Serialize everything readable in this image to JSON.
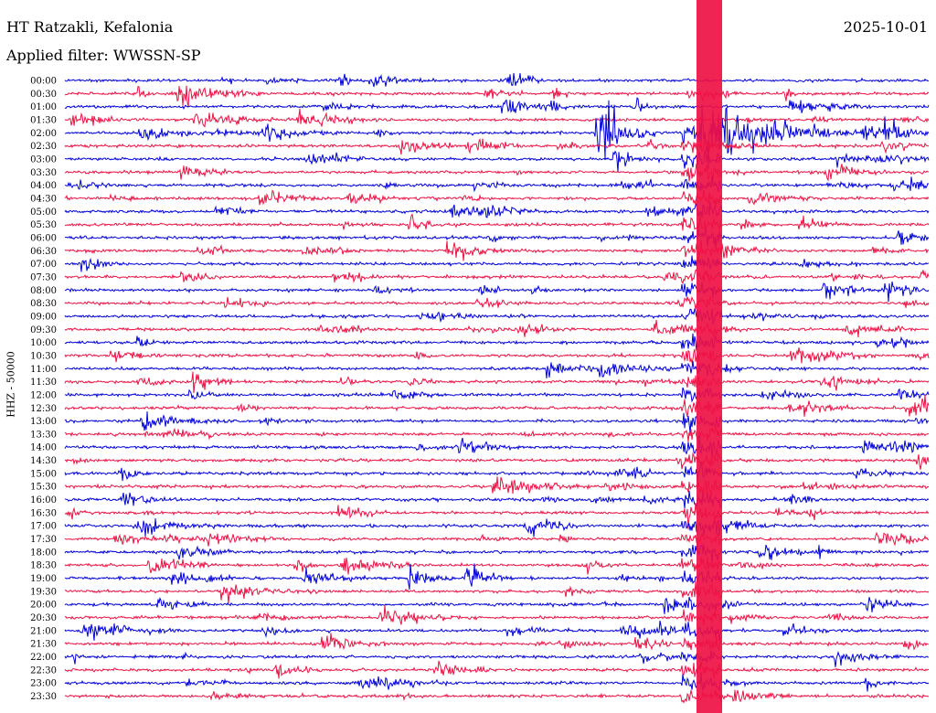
{
  "header": {
    "station": "HT Ratzakli, Kefalonia",
    "filter": "Applied filter: WWSSN-SP",
    "date": "2025-10-01"
  },
  "axis": {
    "channel_label": "HHZ - 50000"
  },
  "colors": {
    "trace_a": "#0000dd",
    "trace_b": "#ee1144",
    "background": "#ffffff",
    "text": "#000000"
  },
  "chart_data": {
    "type": "line",
    "title": "HT Ratzakli, Kefalonia",
    "subtitle": "Applied filter: WWSSN-SP",
    "date": "2025-10-01",
    "channel": "HHZ - 50000",
    "trace_interval_minutes": 30,
    "alternating_colors": [
      "#0000dd",
      "#ee1144"
    ],
    "rows": [
      "00:00",
      "00:30",
      "01:00",
      "01:30",
      "02:00",
      "02:30",
      "03:00",
      "03:30",
      "04:00",
      "04:30",
      "05:00",
      "05:30",
      "06:00",
      "06:30",
      "07:00",
      "07:30",
      "08:00",
      "08:30",
      "09:00",
      "09:30",
      "10:00",
      "10:30",
      "11:00",
      "11:30",
      "12:00",
      "12:30",
      "13:00",
      "13:30",
      "14:00",
      "14:30",
      "15:00",
      "15:30",
      "16:00",
      "16:30",
      "17:00",
      "17:30",
      "18:00",
      "18:30",
      "19:00",
      "19:30",
      "20:00",
      "20:30",
      "21:00",
      "21:30",
      "22:00",
      "22:30",
      "23:00",
      "23:30"
    ],
    "notable_events": [
      {
        "row": "00:30",
        "minute": 4,
        "amplitude": "large"
      },
      {
        "row": "02:00",
        "minute": 18.5,
        "amplitude": "very-large",
        "note": "long coda persisting to ~23:30"
      },
      {
        "row": "02:00",
        "minute": 28.5,
        "amplitude": "large"
      },
      {
        "row": "19:00",
        "minute": 14,
        "amplitude": "large"
      },
      {
        "row": "19:00",
        "minute": 12,
        "amplitude": "large"
      },
      {
        "row": "21:30",
        "minute": 9,
        "amplitude": "large"
      }
    ],
    "grid": false,
    "legend": "none"
  }
}
